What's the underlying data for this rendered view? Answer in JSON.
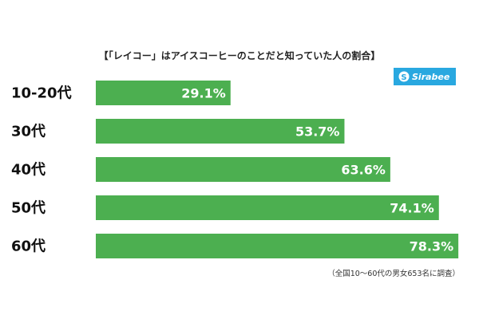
{
  "chart_data": {
    "type": "bar",
    "orientation": "horizontal",
    "title": "【「レイコー」はアイスコーヒーのことだと知っていた人の割合】",
    "categories": [
      "10-20代",
      "30代",
      "40代",
      "50代",
      "60代"
    ],
    "values": [
      29.1,
      53.7,
      63.6,
      74.1,
      78.3
    ],
    "value_suffix": "%",
    "xlim": [
      0,
      100
    ],
    "grid": false,
    "legend": "none",
    "annotation": "（全国10～60代の男女653名に調査）",
    "bar_color": "#4caf50"
  },
  "logo": {
    "text": "Sirabee",
    "color": "#29a8e0"
  }
}
